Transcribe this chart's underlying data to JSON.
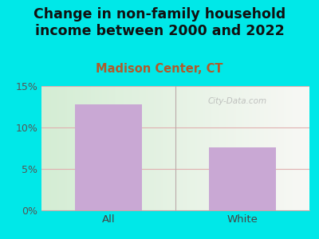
{
  "title": "Change in non-family household\nincome between 2000 and 2022",
  "subtitle": "Madison Center, CT",
  "categories": [
    "All",
    "White"
  ],
  "values": [
    12.8,
    7.6
  ],
  "bar_color": "#c9a8d4",
  "title_fontsize": 12.5,
  "subtitle_fontsize": 10.5,
  "subtitle_color": "#b05a2a",
  "title_color": "#111111",
  "background_outer": "#00e8e8",
  "ylim": [
    0,
    15
  ],
  "yticks": [
    0,
    5,
    10,
    15
  ],
  "ytick_labels": [
    "0%",
    "5%",
    "10%",
    "15%"
  ],
  "grid_color": "#e0b0b0",
  "watermark": "City-Data.com"
}
